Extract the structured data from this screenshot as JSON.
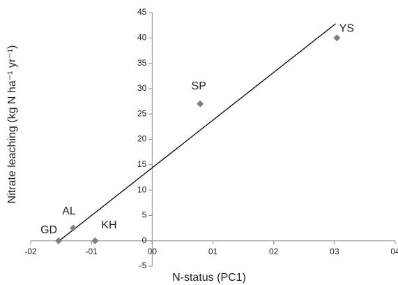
{
  "chart_data": {
    "type": "scatter",
    "x_label": "N-status (PC1)",
    "y_label": "Nitrate leaching (kg N ha⁻¹ yr⁻¹)",
    "x": [
      -0.154,
      -0.13,
      -0.094,
      0.079,
      0.304
    ],
    "values": [
      0,
      2.5,
      0,
      27,
      40
    ],
    "labels": [
      "GD",
      "AL",
      "KH",
      "SP",
      "YS"
    ],
    "color": "#808080",
    "trendline": {
      "x": [
        -0.154,
        0.302
      ],
      "y": [
        -0.1,
        42.8
      ],
      "color": "#000000"
    },
    "xlim": [
      -0.2,
      0.4
    ],
    "xticks": [
      {
        "value": -0.2,
        "label": "-02"
      },
      {
        "value": -0.1,
        "label": "-01"
      },
      {
        "value": 0,
        "label": "00"
      },
      {
        "value": 0.1,
        "label": "01"
      },
      {
        "value": 0.2,
        "label": "02"
      },
      {
        "value": 0.3,
        "label": "03"
      },
      {
        "value": 0.4,
        "label": "04"
      }
    ],
    "ylim": [
      -5,
      45
    ],
    "yticks": [
      -5,
      0,
      5,
      10,
      15,
      20,
      25,
      30,
      35,
      40,
      45
    ],
    "grid": false
  }
}
